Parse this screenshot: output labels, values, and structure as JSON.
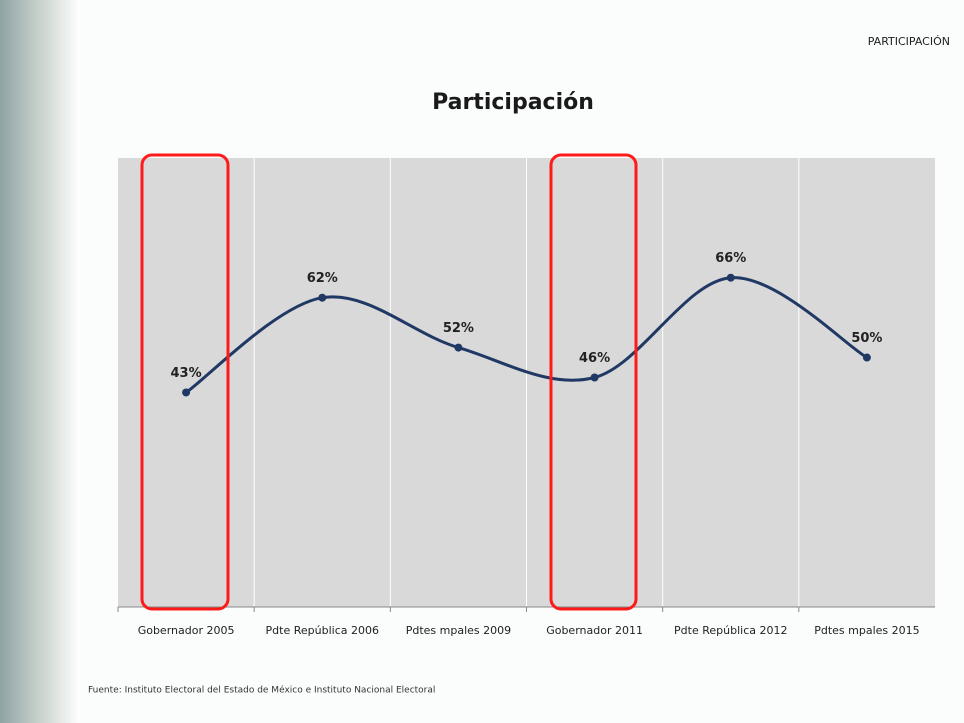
{
  "chart_data": {
    "type": "line",
    "title": "Participación",
    "section_label": "PARTICIPACIÓN",
    "source": "Fuente: Instituto Electoral del Estado de México e Instituto Nacional Electoral",
    "categories": [
      "Gobernador 2005",
      "Pdte República 2006",
      "Pdtes mpales 2009",
      "Gobernador 2011",
      "Pdte República 2012",
      "Pdtes mpales 2015"
    ],
    "values": [
      43,
      62,
      52,
      46,
      66,
      50
    ],
    "value_labels": [
      "43%",
      "62%",
      "52%",
      "46%",
      "66%",
      "50%"
    ],
    "color": "#1f3864",
    "ylim": [
      0,
      90
    ]
  }
}
